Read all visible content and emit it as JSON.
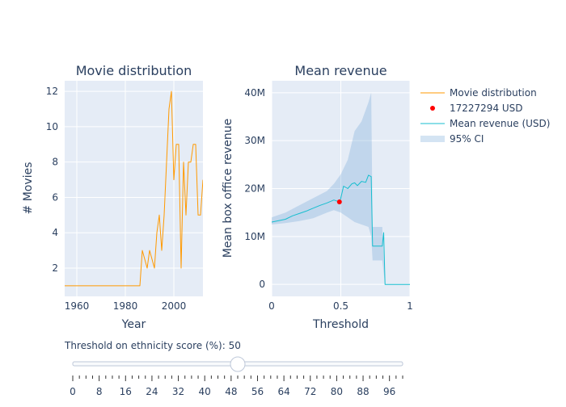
{
  "chart_data": [
    {
      "type": "line",
      "title": "Movie distribution",
      "xlabel": "Year",
      "ylabel": "# Movies",
      "xlim": [
        1955,
        2012
      ],
      "ylim": [
        0.4,
        12.6
      ],
      "xticks": [
        1960,
        1980,
        2000
      ],
      "yticks": [
        2,
        4,
        6,
        8,
        10,
        12
      ],
      "grid": true,
      "series": [
        {
          "name": "Movie distribution",
          "color": "#ff9900",
          "points": [
            [
              1955,
              1
            ],
            [
              1986,
              1
            ],
            [
              1987,
              3
            ],
            [
              1988,
              2.5
            ],
            [
              1989,
              2
            ],
            [
              1990,
              3
            ],
            [
              1991,
              2.5
            ],
            [
              1992,
              2
            ],
            [
              1993,
              4
            ],
            [
              1994,
              5
            ],
            [
              1995,
              3
            ],
            [
              1996,
              5
            ],
            [
              1997,
              8
            ],
            [
              1998,
              11
            ],
            [
              1999,
              12
            ],
            [
              2000,
              7
            ],
            [
              2001,
              9
            ],
            [
              2002,
              9
            ],
            [
              2003,
              2
            ],
            [
              2004,
              8
            ],
            [
              2005,
              5
            ],
            [
              2006,
              8
            ],
            [
              2007,
              8
            ],
            [
              2008,
              9
            ],
            [
              2009,
              9
            ],
            [
              2010,
              5
            ],
            [
              2011,
              5
            ],
            [
              2012,
              7
            ]
          ]
        }
      ]
    },
    {
      "type": "line",
      "title": "Mean revenue",
      "xlabel": "Threshold",
      "ylabel": "Mean box office revenue",
      "xlim": [
        0,
        1
      ],
      "ylim": [
        -2500000,
        42500000
      ],
      "xticks": [
        0,
        0.5,
        1
      ],
      "xtick_labels": [
        "0",
        "0.5",
        "1"
      ],
      "yticks": [
        0,
        10000000,
        20000000,
        30000000,
        40000000
      ],
      "ytick_labels": [
        "0",
        "10M",
        "20M",
        "30M",
        "40M"
      ],
      "grid": true,
      "series": [
        {
          "name": "Mean revenue (USD)",
          "color": "#17becf",
          "points": [
            [
              0,
              13000000
            ],
            [
              0.05,
              13300000
            ],
            [
              0.1,
              13600000
            ],
            [
              0.15,
              14300000
            ],
            [
              0.2,
              14800000
            ],
            [
              0.25,
              15300000
            ],
            [
              0.3,
              15900000
            ],
            [
              0.35,
              16500000
            ],
            [
              0.4,
              17000000
            ],
            [
              0.45,
              17600000
            ],
            [
              0.49,
              17227294
            ],
            [
              0.5,
              18000000
            ],
            [
              0.52,
              20500000
            ],
            [
              0.55,
              20000000
            ],
            [
              0.58,
              21000000
            ],
            [
              0.6,
              21200000
            ],
            [
              0.62,
              20600000
            ],
            [
              0.65,
              21500000
            ],
            [
              0.68,
              21300000
            ],
            [
              0.7,
              22800000
            ],
            [
              0.72,
              22500000
            ],
            [
              0.73,
              8000000
            ],
            [
              0.76,
              8000000
            ],
            [
              0.8,
              8000000
            ],
            [
              0.81,
              10800000
            ],
            [
              0.82,
              0
            ],
            [
              1.0,
              0
            ]
          ]
        },
        {
          "name": "95% CI",
          "color": "rgba(99,158,212,0.28)",
          "upper": [
            [
              0,
              14000000
            ],
            [
              0.1,
              15000000
            ],
            [
              0.2,
              16500000
            ],
            [
              0.3,
              18000000
            ],
            [
              0.4,
              19500000
            ],
            [
              0.45,
              21000000
            ],
            [
              0.5,
              23000000
            ],
            [
              0.55,
              26000000
            ],
            [
              0.6,
              32000000
            ],
            [
              0.65,
              34000000
            ],
            [
              0.7,
              38000000
            ],
            [
              0.72,
              40000000
            ],
            [
              0.73,
              12000000
            ],
            [
              0.8,
              12000000
            ],
            [
              0.82,
              0
            ],
            [
              1.0,
              0
            ]
          ],
          "lower": [
            [
              0,
              12500000
            ],
            [
              0.1,
              12800000
            ],
            [
              0.2,
              13200000
            ],
            [
              0.3,
              13800000
            ],
            [
              0.4,
              15000000
            ],
            [
              0.45,
              15500000
            ],
            [
              0.5,
              15000000
            ],
            [
              0.55,
              14000000
            ],
            [
              0.6,
              13000000
            ],
            [
              0.65,
              12500000
            ],
            [
              0.7,
              12000000
            ],
            [
              0.72,
              10000000
            ],
            [
              0.73,
              5000000
            ],
            [
              0.8,
              5000000
            ],
            [
              0.82,
              0
            ],
            [
              1.0,
              0
            ]
          ]
        }
      ],
      "marker": {
        "label": "17227294 USD",
        "x": 0.49,
        "y": 17227294,
        "color": "#ff0000"
      }
    }
  ],
  "legend": {
    "placement": "right",
    "items": [
      {
        "label": "Movie distribution",
        "kind": "line",
        "color": "#ff9900"
      },
      {
        "label": "17227294 USD",
        "kind": "dot",
        "color": "#ff0000"
      },
      {
        "label": "Mean revenue (USD)",
        "kind": "line",
        "color": "#17becf"
      },
      {
        "label": "95% CI",
        "kind": "band",
        "color": "rgba(99,158,212,0.28)"
      }
    ]
  },
  "slider": {
    "label": "Threshold on ethnicity score (%): 50",
    "value": 50,
    "min": 0,
    "max": 100,
    "tick_labels": [
      "0",
      "8",
      "16",
      "24",
      "32",
      "40",
      "48",
      "56",
      "64",
      "72",
      "80",
      "88",
      "96"
    ]
  }
}
